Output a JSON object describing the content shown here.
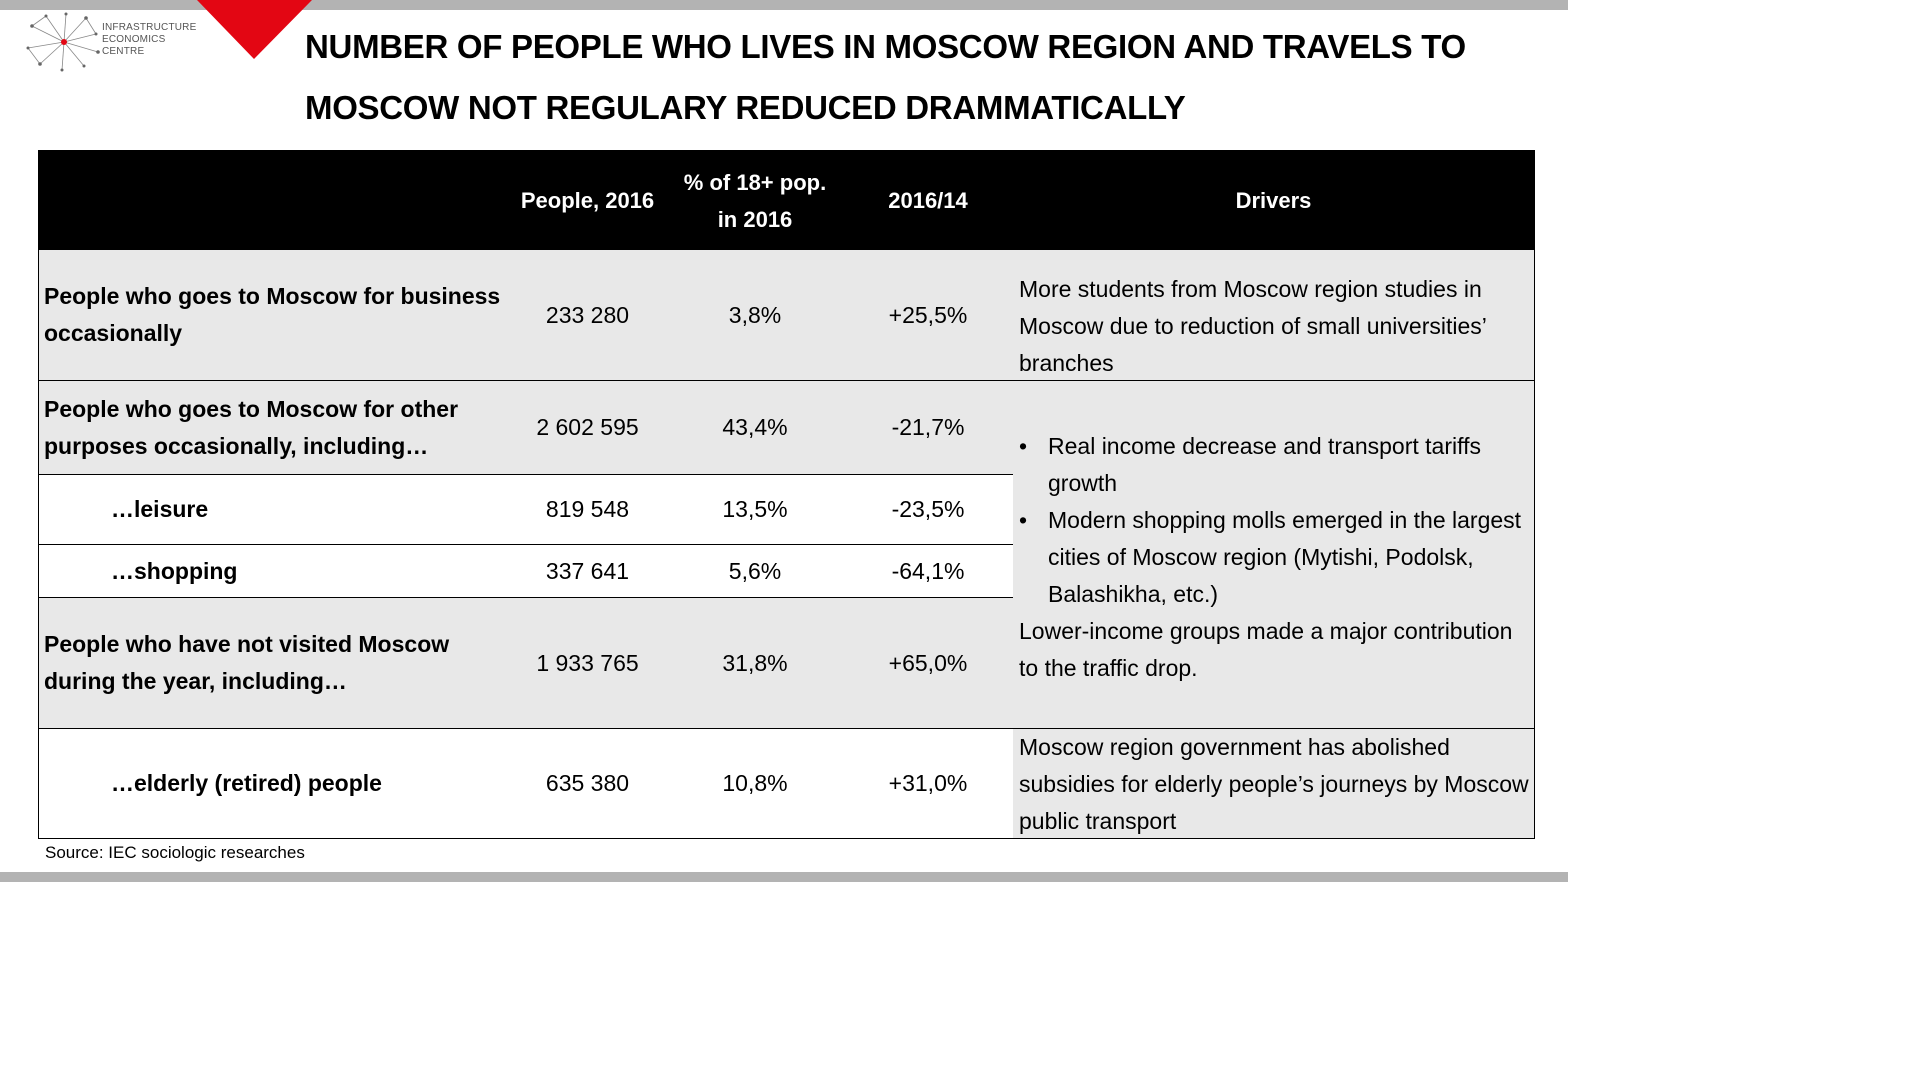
{
  "logo": {
    "lines": [
      "INFRASTRUCTURE",
      "ECONOMICS",
      "CENTRE"
    ],
    "accent_color": "#e30613"
  },
  "title": "NUMBER OF PEOPLE WHO LIVES IN MOSCOW REGION AND TRAVELS TO MOSCOW NOT REGULARY REDUCED DRAMMATICALLY",
  "table": {
    "headers": {
      "people": "People, 2016",
      "pct": "% of 18+ pop. in 2016",
      "change": "2016/14",
      "drivers": "Drivers"
    },
    "rows": [
      {
        "label": "People who goes to Moscow for business occasionally",
        "people": "233 280",
        "pct": "3,8%",
        "change": "+25,5%"
      },
      {
        "label": "People who goes to Moscow for other purposes occasionally, including…",
        "people": "2 602 595",
        "pct": "43,4%",
        "change": "-21,7%"
      },
      {
        "label": "…leisure",
        "people": "819 548",
        "pct": "13,5%",
        "change": "-23,5%"
      },
      {
        "label": "…shopping",
        "people": "337 641",
        "pct": "5,6%",
        "change": "-64,1%"
      },
      {
        "label": "People who have not visited Moscow during the year, including…",
        "people": "1 933 765",
        "pct": "31,8%",
        "change": "+65,0%"
      },
      {
        "label": "…elderly (retired) people",
        "people": "635 380",
        "pct": "10,8%",
        "change": "+31,0%"
      }
    ],
    "drivers": {
      "business": "More students from Moscow region studies in Moscow due to reduction of small universities’ branches",
      "other_bullets": [
        "Real income decrease and transport tariffs growth",
        "Modern shopping molls emerged in the largest cities of Moscow region (Mytishi, Podolsk, Balashikha, etc.)"
      ],
      "other_note": "Lower-income groups made a major contribution to the traffic drop.",
      "elderly": "Moscow region government has abolished subsidies for elderly people’s journeys by Moscow public transport"
    }
  },
  "source": "Source: IEC sociologic researches"
}
